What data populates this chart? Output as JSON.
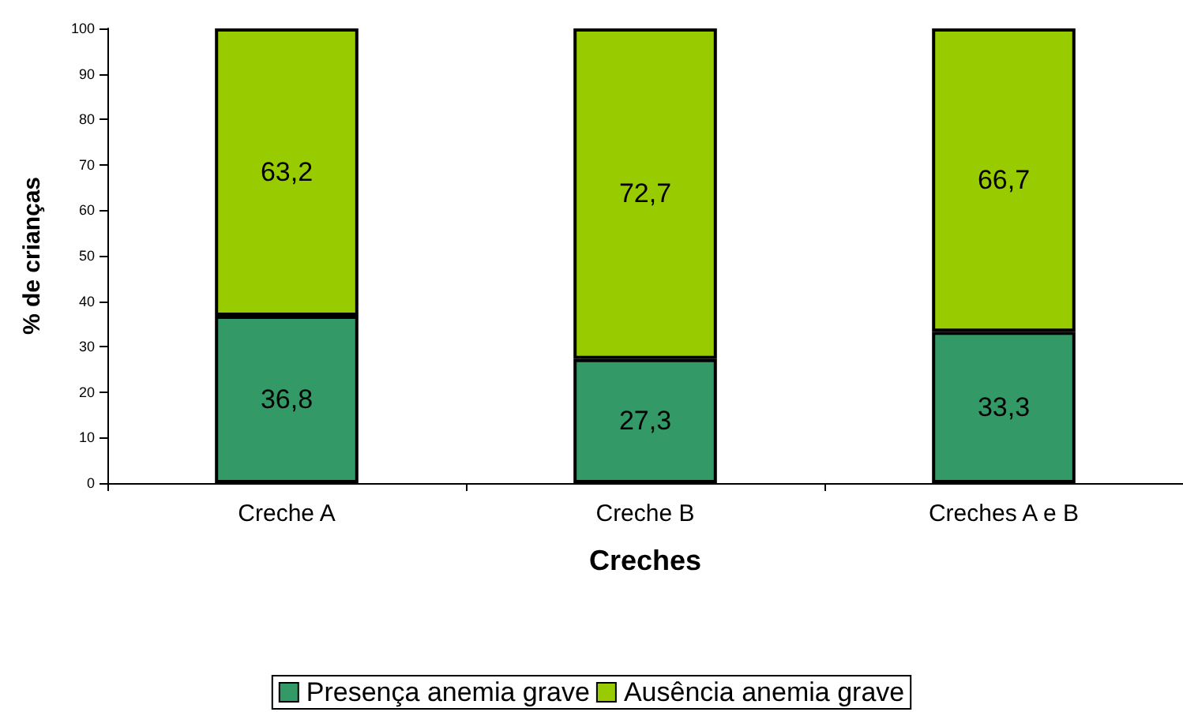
{
  "chart_data": {
    "type": "bar",
    "stacked": true,
    "xlabel": "Creches",
    "ylabel": "% de crianças",
    "categories": [
      "Creche A",
      "Creche B",
      "Creches A e B"
    ],
    "series": [
      {
        "name": "Presença anemia grave",
        "color": "#339966",
        "values": [
          36.8,
          27.3,
          33.3
        ],
        "value_labels": [
          "36,8",
          "27,3",
          "33,3"
        ]
      },
      {
        "name": "Ausência anemia grave",
        "color": "#99cc00",
        "values": [
          63.2,
          72.7,
          66.7
        ],
        "value_labels": [
          "63,2",
          "72,7",
          "66,7"
        ]
      }
    ],
    "ylim": [
      0,
      100
    ],
    "yticks": [
      0,
      10,
      20,
      30,
      40,
      50,
      60,
      70,
      80,
      90,
      100
    ],
    "grid": false,
    "legend": "bottom"
  }
}
